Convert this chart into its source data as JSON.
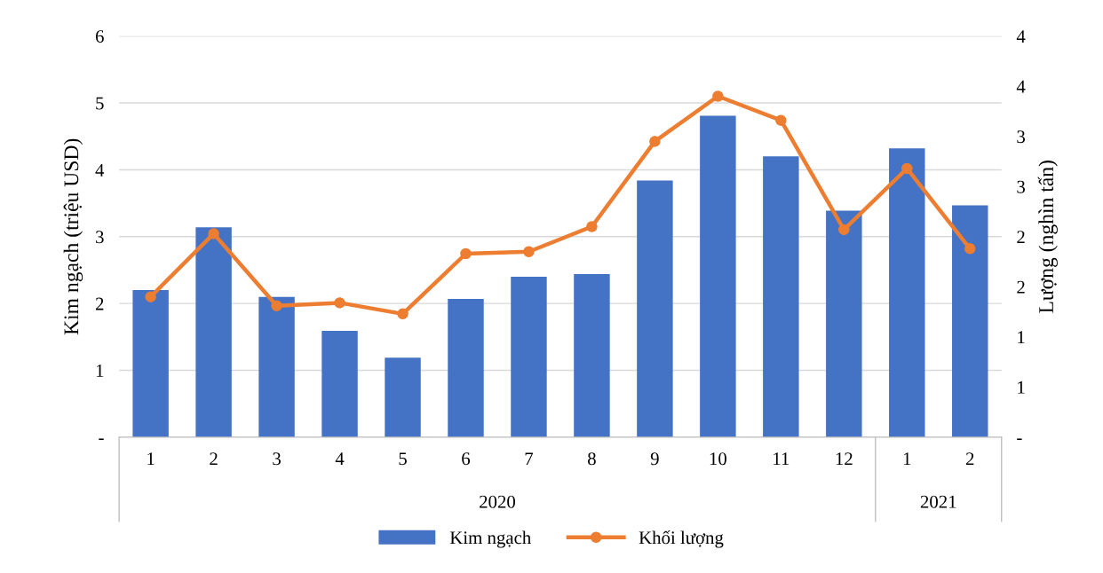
{
  "chart_data": {
    "type": "bar",
    "categories": [
      "1",
      "2",
      "3",
      "4",
      "5",
      "6",
      "7",
      "8",
      "9",
      "10",
      "11",
      "12",
      "1",
      "2"
    ],
    "ylabel": "Kim ngạch (triệu USD)",
    "y2label": "Lượng (nghìn tấn)",
    "ylim": [
      0,
      6
    ],
    "yticks": [
      {
        "value": 0,
        "label": "-"
      },
      1,
      2,
      3,
      4,
      5,
      6
    ],
    "y2lim": [
      0,
      4
    ],
    "y2ticks": [
      {
        "value": 0,
        "label": "-"
      },
      {
        "value": 0.5,
        "label": "1"
      },
      {
        "value": 1,
        "label": "1"
      },
      {
        "value": 1.5,
        "label": "2"
      },
      {
        "value": 2,
        "label": "2"
      },
      {
        "value": 2.5,
        "label": "3"
      },
      {
        "value": 3,
        "label": "3"
      },
      {
        "value": 3.5,
        "label": "4"
      },
      {
        "value": 4,
        "label": "4"
      }
    ],
    "series": [
      {
        "name": "Kim ngạch",
        "color": "#4472c4",
        "values": [
          2.2,
          3.14,
          2.1,
          1.59,
          1.19,
          2.07,
          2.4,
          2.44,
          3.84,
          4.81,
          4.2,
          3.39,
          4.32,
          3.47
        ]
      },
      {
        "name": "Khối lượng",
        "type": "line",
        "axis": "y2",
        "color": "#ed7d31",
        "marker": "circle",
        "values": [
          1.4,
          2.03,
          1.31,
          1.34,
          1.23,
          1.83,
          1.85,
          2.1,
          2.95,
          3.4,
          3.16,
          2.07,
          2.68,
          1.88
        ]
      }
    ],
    "annotations": [
      "2020",
      "2021"
    ],
    "grid": "y",
    "legend": "bottom"
  }
}
